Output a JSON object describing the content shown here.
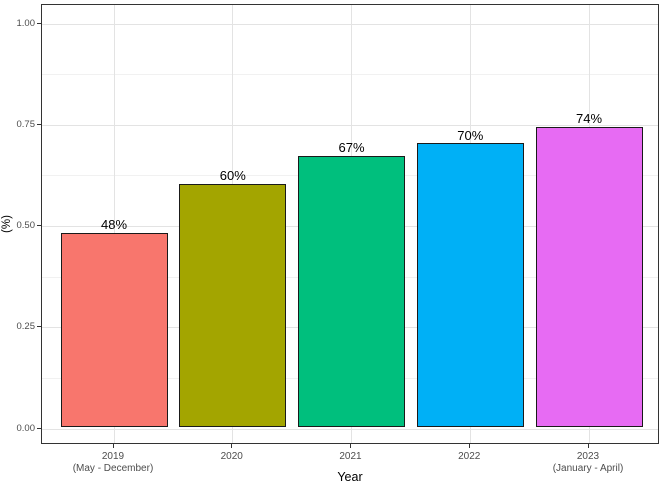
{
  "chart_data": {
    "type": "bar",
    "title": "",
    "xlabel": "Year",
    "ylabel": "(%)",
    "categories": [
      {
        "label": "2019",
        "sublabel": "(May - December)"
      },
      {
        "label": "2020",
        "sublabel": ""
      },
      {
        "label": "2021",
        "sublabel": ""
      },
      {
        "label": "2022",
        "sublabel": ""
      },
      {
        "label": "2023",
        "sublabel": "(January - April)"
      }
    ],
    "values": [
      0.48,
      0.6,
      0.67,
      0.7,
      0.74
    ],
    "value_labels": [
      "48%",
      "60%",
      "67%",
      "70%",
      "74%"
    ],
    "bar_colors": [
      "#F8766D",
      "#A3A500",
      "#00BF7D",
      "#00B0F6",
      "#E76BF3"
    ],
    "bar_edge_color": "#1A1A1A",
    "ylim": [
      0,
      1.05
    ],
    "y_ticks": [
      {
        "label": "0.00",
        "value": 0
      },
      {
        "label": "0.25",
        "value": 0.25
      },
      {
        "label": "0.50",
        "value": 0.5
      },
      {
        "label": "0.75",
        "value": 0.75
      },
      {
        "label": "1.00",
        "value": 1.0
      }
    ],
    "y_minor_ticks": [
      0.125,
      0.375,
      0.625,
      0.875
    ],
    "grid": {
      "horizontal": "major and minor",
      "vertical": "major at category centers",
      "major_color": "#E3E3E3",
      "minor_color": "#F1F1F1"
    },
    "panel_border_color": "#333333",
    "background": "#FFFFFF",
    "legend": "none"
  }
}
